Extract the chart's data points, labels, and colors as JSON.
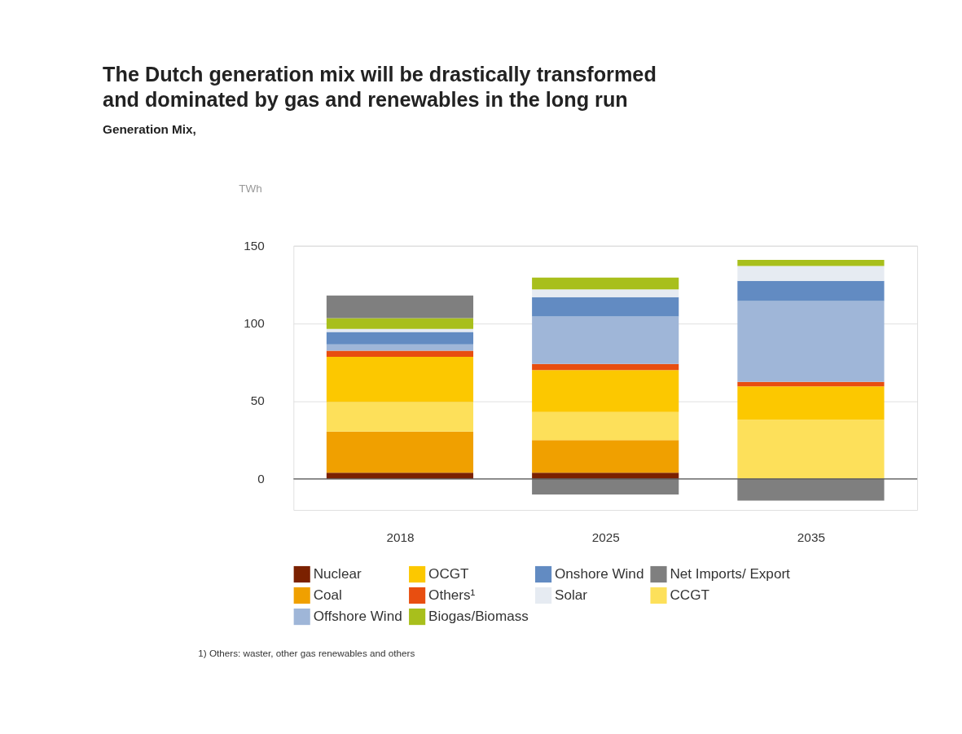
{
  "chart_data": {
    "type": "bar",
    "stacked": true,
    "title": "The Dutch generation mix will be drastically transformed\nand dominated by gas and renewables in the long run",
    "subtitle": "Generation Mix,",
    "ylabel": "TWh",
    "categories": [
      "2018",
      "2025",
      "2035"
    ],
    "series": [
      {
        "name": "Nuclear",
        "color": "#7b2100",
        "values": [
          4,
          4,
          null
        ]
      },
      {
        "name": "Coal",
        "color": "#f0a000",
        "values": [
          26.5,
          21,
          null
        ]
      },
      {
        "name": "CCGT",
        "color": "#fde05a",
        "values": [
          19,
          18,
          38
        ]
      },
      {
        "name": "OCGT",
        "color": "#fcc800",
        "values": [
          29,
          27,
          21.5
        ]
      },
      {
        "name": "Others¹",
        "color": "#e84e10",
        "values": [
          4,
          4,
          3
        ]
      },
      {
        "name": "Offshore Wind",
        "color": "#9fb6d8",
        "values": [
          4,
          30.5,
          52
        ]
      },
      {
        "name": "Onshore Wind",
        "color": "#628bc2",
        "values": [
          8,
          12.5,
          13
        ]
      },
      {
        "name": "Solar",
        "color": "#e6ebf2",
        "values": [
          2,
          5,
          9.5
        ]
      },
      {
        "name": "Biogas/Biomass",
        "color": "#a8bf1c",
        "values": [
          7,
          7.5,
          4
        ]
      },
      {
        "name": "Net Imports/ Export",
        "color": "#7f7f7f",
        "values": [
          14.5,
          -10,
          -14
        ]
      }
    ],
    "ylim": [
      -20,
      150
    ],
    "yticks": [
      0,
      50,
      100,
      150
    ],
    "grid": "y",
    "legend": "bottom",
    "ref_lines": [
      {
        "axis": "y",
        "value": 0,
        "color": "#555555"
      }
    ],
    "annotations": [
      "1) Others: waster, other gas renewables and others"
    ]
  }
}
